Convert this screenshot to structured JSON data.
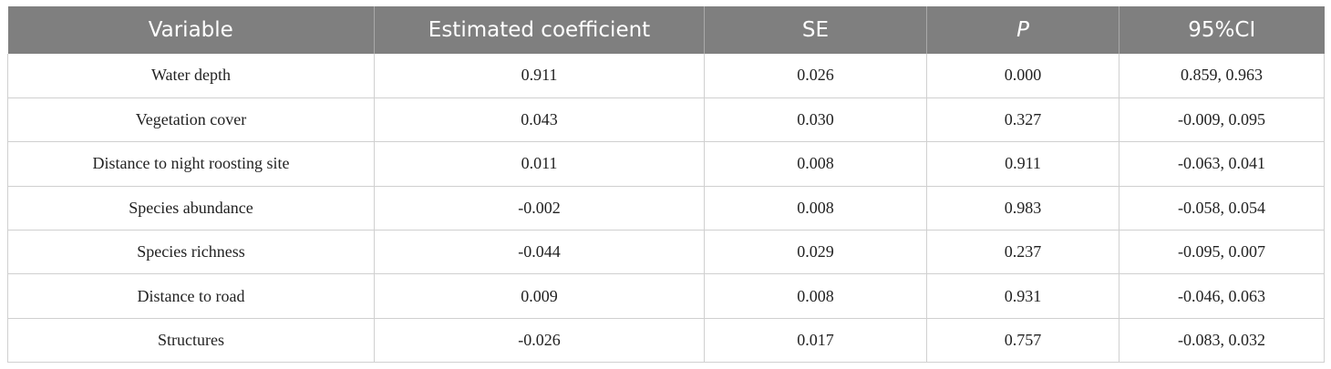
{
  "table": {
    "headers": [
      "Variable",
      "Estimated coefficient",
      "SE",
      "P",
      "95%CI"
    ],
    "rows": [
      [
        "Water depth",
        "0.911",
        "0.026",
        "0.000",
        "0.859, 0.963"
      ],
      [
        "Vegetation cover",
        "0.043",
        "0.030",
        "0.327",
        "-0.009, 0.095"
      ],
      [
        "Distance to night roosting site",
        "0.011",
        "0.008",
        "0.911",
        "-0.063, 0.041"
      ],
      [
        "Species abundance",
        "-0.002",
        "0.008",
        "0.983",
        "-0.058, 0.054"
      ],
      [
        "Species richness",
        "-0.044",
        "0.029",
        "0.237",
        "-0.095, 0.007"
      ],
      [
        "Distance to road",
        "0.009",
        "0.008",
        "0.931",
        "-0.046, 0.063"
      ],
      [
        "Structures",
        "-0.026",
        "0.017",
        "0.757",
        "-0.083, 0.032"
      ]
    ]
  },
  "colors": {
    "header_background": "#7f7f7f",
    "header_text": "#ffffff",
    "grid_lines": "#d0d0d0"
  }
}
